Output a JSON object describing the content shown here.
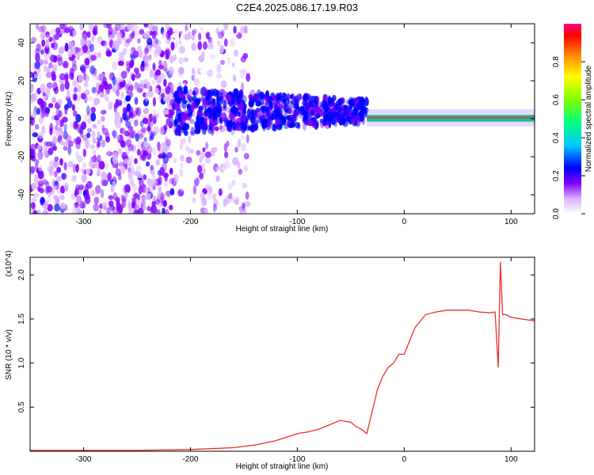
{
  "title": "C2E4.2025.086.17.19.R03",
  "colors": {
    "snr_line": "#e8302a",
    "frame": "#000000",
    "background": "#ffffff"
  },
  "chart_data": [
    {
      "type": "heatmap",
      "title": "",
      "xlabel": "Height of straight line (km)",
      "ylabel": "Frequency (Hz)",
      "xlim": [
        -350,
        122
      ],
      "ylim": [
        -50,
        50
      ],
      "xticks": [
        -300,
        -200,
        -100,
        0,
        100
      ],
      "yticks": [
        -40,
        -20,
        0,
        20,
        40
      ],
      "regions": [
        {
          "label": "scattered weak-to-moderate returns",
          "x": [
            -350,
            -215
          ],
          "freq": [
            -50,
            50
          ],
          "amplitude": [
            0.1,
            0.25
          ]
        },
        {
          "label": "sparse weak returns",
          "x": [
            -215,
            -145
          ],
          "freq": [
            -50,
            50
          ],
          "amplitude": [
            0.05,
            0.2
          ]
        },
        {
          "label": "broad band",
          "x": [
            -215,
            -35
          ],
          "freq": [
            -15,
            15
          ],
          "amplitude": [
            0.2,
            0.35
          ]
        },
        {
          "label": "narrow band",
          "x": [
            -35,
            122
          ],
          "freq": [
            -2,
            3
          ],
          "amplitude": [
            0.3,
            0.95
          ]
        }
      ],
      "colorbar": {
        "label": "Normalized spectral amplitude",
        "range": [
          0.0,
          1.0
        ],
        "ticks": [
          0.0,
          0.2,
          0.4,
          0.6,
          0.8
        ],
        "colormap": [
          "#ffffff",
          "#8000ff",
          "#0000ff",
          "#00ffff",
          "#00ff00",
          "#ffff00",
          "#ff8000",
          "#ff0000",
          "#ff0080"
        ]
      }
    },
    {
      "type": "line",
      "title": "",
      "xlabel": "Height of straight line (km)",
      "ylabel": "SNR (10 * v/v)",
      "y_multiplier": "(x10^4)",
      "xlim": [
        -350,
        122
      ],
      "ylim": [
        0,
        2.2
      ],
      "xticks": [
        -300,
        -200,
        -100,
        0,
        100
      ],
      "yticks": [
        0.5,
        1.0,
        1.5,
        2.0
      ],
      "series": [
        {
          "x": [
            -350,
            -250,
            -200,
            -180,
            -160,
            -140,
            -120,
            -100,
            -90,
            -80,
            -70,
            -60,
            -50,
            -45,
            -40,
            -35,
            -30,
            -25,
            -20,
            -15,
            -10,
            -5,
            0,
            5,
            10,
            20,
            30,
            40,
            50,
            60,
            70,
            80,
            85,
            88,
            90,
            92,
            95,
            100,
            110,
            122
          ],
          "y": [
            0.01,
            0.01,
            0.02,
            0.03,
            0.04,
            0.07,
            0.12,
            0.2,
            0.22,
            0.25,
            0.3,
            0.35,
            0.33,
            0.28,
            0.25,
            0.2,
            0.45,
            0.7,
            0.85,
            0.95,
            1.0,
            1.1,
            1.1,
            1.25,
            1.4,
            1.55,
            1.58,
            1.6,
            1.6,
            1.6,
            1.58,
            1.57,
            1.58,
            0.95,
            2.15,
            1.55,
            1.55,
            1.52,
            1.5,
            1.48
          ]
        }
      ]
    }
  ]
}
